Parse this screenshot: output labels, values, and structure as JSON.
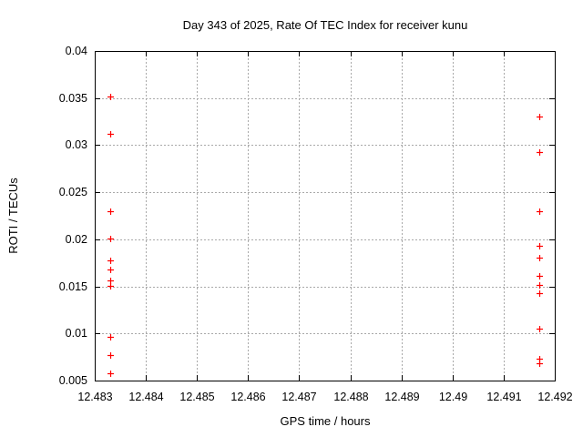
{
  "chart_data": {
    "type": "scatter",
    "title": "Day 343 of 2025, Rate Of TEC Index for receiver kunu",
    "xlabel": "GPS time / hours",
    "ylabel": "ROTI / TECUs",
    "xlim": [
      12.483,
      12.492
    ],
    "ylim": [
      0.005,
      0.04
    ],
    "xticks": {
      "values": [
        12.483,
        12.484,
        12.485,
        12.486,
        12.487,
        12.488,
        12.489,
        12.49,
        12.491,
        12.492
      ],
      "labels": [
        "12.483",
        "12.484",
        "12.485",
        "12.486",
        "12.487",
        "12.488",
        "12.489",
        "12.49",
        "12.491",
        "12.492"
      ]
    },
    "yticks": {
      "values": [
        0.005,
        0.01,
        0.015,
        0.02,
        0.025,
        0.03,
        0.035,
        0.04
      ],
      "labels": [
        "0.005",
        "0.01",
        "0.015",
        "0.02",
        "0.025",
        "0.03",
        "0.035",
        "0.04"
      ]
    },
    "grid": true,
    "legend": "none",
    "marker": "plus",
    "colors": {
      "marker": "#ff0000",
      "grid": "#a9a9a9",
      "frame": "#000000",
      "background": "#ffffff"
    },
    "series": [
      {
        "name": "ROTI",
        "points": [
          [
            12.4833,
            0.0352
          ],
          [
            12.4833,
            0.0312
          ],
          [
            12.4833,
            0.023
          ],
          [
            12.4833,
            0.0201
          ],
          [
            12.4833,
            0.0178
          ],
          [
            12.4833,
            0.0168
          ],
          [
            12.4833,
            0.0156
          ],
          [
            12.4833,
            0.0151
          ],
          [
            12.4833,
            0.0096
          ],
          [
            12.4833,
            0.0077
          ],
          [
            12.4833,
            0.0058
          ],
          [
            12.4917,
            0.033
          ],
          [
            12.4917,
            0.0293
          ],
          [
            12.4917,
            0.023
          ],
          [
            12.4917,
            0.0193
          ],
          [
            12.4917,
            0.0181
          ],
          [
            12.4917,
            0.0161
          ],
          [
            12.4917,
            0.0152
          ],
          [
            12.4917,
            0.0143
          ],
          [
            12.4917,
            0.0105
          ],
          [
            12.4917,
            0.0073
          ],
          [
            12.4917,
            0.0068
          ]
        ]
      }
    ]
  }
}
